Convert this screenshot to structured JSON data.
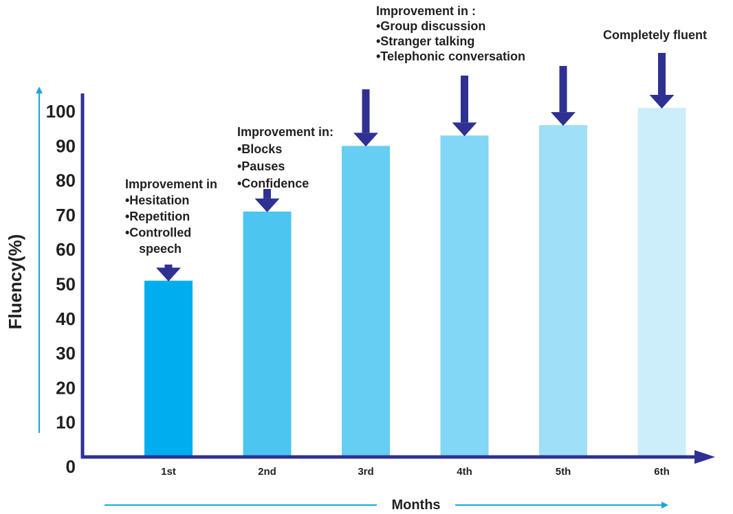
{
  "chart_data": {
    "type": "bar",
    "categories": [
      "1st",
      "2nd",
      "3rd",
      "4th",
      "5th",
      "6th"
    ],
    "values": [
      51,
      71,
      90,
      93,
      96,
      101
    ],
    "xlabel": "Months",
    "ylabel": "Fluency(%)",
    "yticks": [
      "0",
      "10",
      "20",
      "30",
      "40",
      "50",
      "60",
      "70",
      "80",
      "90",
      "100"
    ],
    "ylim": [
      0,
      100
    ],
    "grid": false,
    "bar_colors": [
      "#00aeef",
      "#4cc5f1",
      "#66cdf3",
      "#82d6f6",
      "#9fdff7",
      "#cceefa"
    ],
    "axis_color": "#2e3192",
    "arrow_color": "#2e3192",
    "label_arrow_color": "#1ba5e0",
    "annotations": [
      [
        "Improvement in",
        "•Hesitation",
        "•Repetition",
        "•Controlled",
        "  speech"
      ],
      [
        "Improvement in:",
        "•Blocks",
        "•Pauses",
        "•Confidence"
      ],
      [
        "Improvement in :",
        "•Group discussion",
        "•Stranger  talking",
        "•Telephonic conversation"
      ],
      [
        "Completely fluent"
      ]
    ]
  }
}
